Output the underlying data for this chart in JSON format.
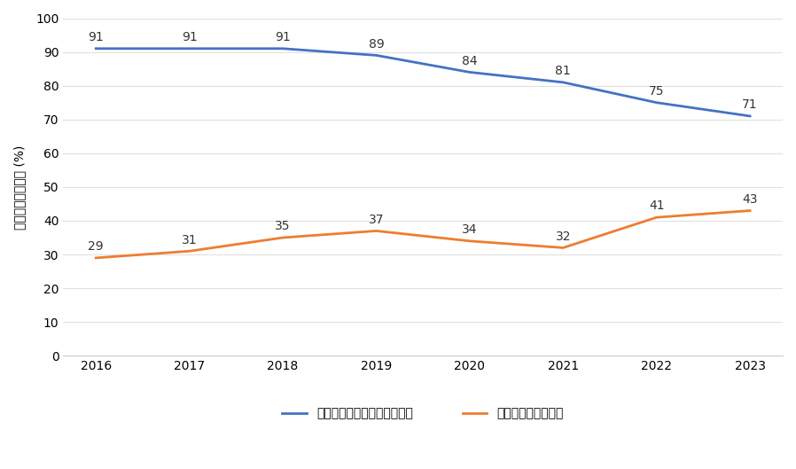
{
  "years": [
    2016,
    2017,
    2018,
    2019,
    2020,
    2021,
    2022,
    2023
  ],
  "blue_values": [
    91,
    91,
    91,
    89,
    84,
    81,
    75,
    71
  ],
  "orange_values": [
    29,
    31,
    35,
    37,
    34,
    32,
    41,
    43
  ],
  "blue_color": "#4472C4",
  "orange_color": "#ED7D31",
  "ylabel": "指标被标记的公司 (%)",
  "ylim": [
    0,
    100
  ],
  "yticks": [
    0,
    10,
    20,
    30,
    40,
    50,
    60,
    70,
    80,
    90,
    100
  ],
  "legend_blue": "董事会多数成员独立于管理层",
  "legend_orange": "对董事投大量反对票",
  "background_color": "#ffffff",
  "line_width": 2.0,
  "label_fontsize": 10,
  "tick_fontsize": 10,
  "legend_fontsize": 10,
  "ylabel_fontsize": 10
}
